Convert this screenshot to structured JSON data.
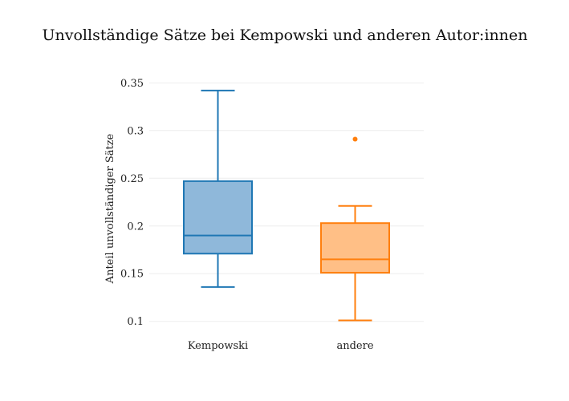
{
  "chart_data": {
    "type": "box",
    "title": "Unvollständige Sätze bei Kempowski und anderen Autor:innen",
    "xlabel": "",
    "ylabel": "Anteil unvollständiger Sätze",
    "ylim": [
      0.088,
      0.357
    ],
    "yticks": [
      0.1,
      0.15,
      0.2,
      0.25,
      0.3,
      0.35
    ],
    "ytick_labels": [
      "0.1",
      "0.15",
      "0.2",
      "0.25",
      "0.3",
      "0.35"
    ],
    "grid": true,
    "legend": "none",
    "categories": [
      "Kempowski",
      "andere"
    ],
    "series": [
      {
        "category": "Kempowski",
        "min": 0.136,
        "q1": 0.171,
        "median": 0.19,
        "q3": 0.247,
        "max": 0.342,
        "outliers": [],
        "color": "#1f77b4",
        "fill": "#8fb8da"
      },
      {
        "category": "andere",
        "min": 0.101,
        "q1": 0.151,
        "median": 0.165,
        "q3": 0.203,
        "max": 0.221,
        "outliers": [
          0.291
        ],
        "color": "#ff7f0e",
        "fill": "#ffbf86"
      }
    ]
  }
}
